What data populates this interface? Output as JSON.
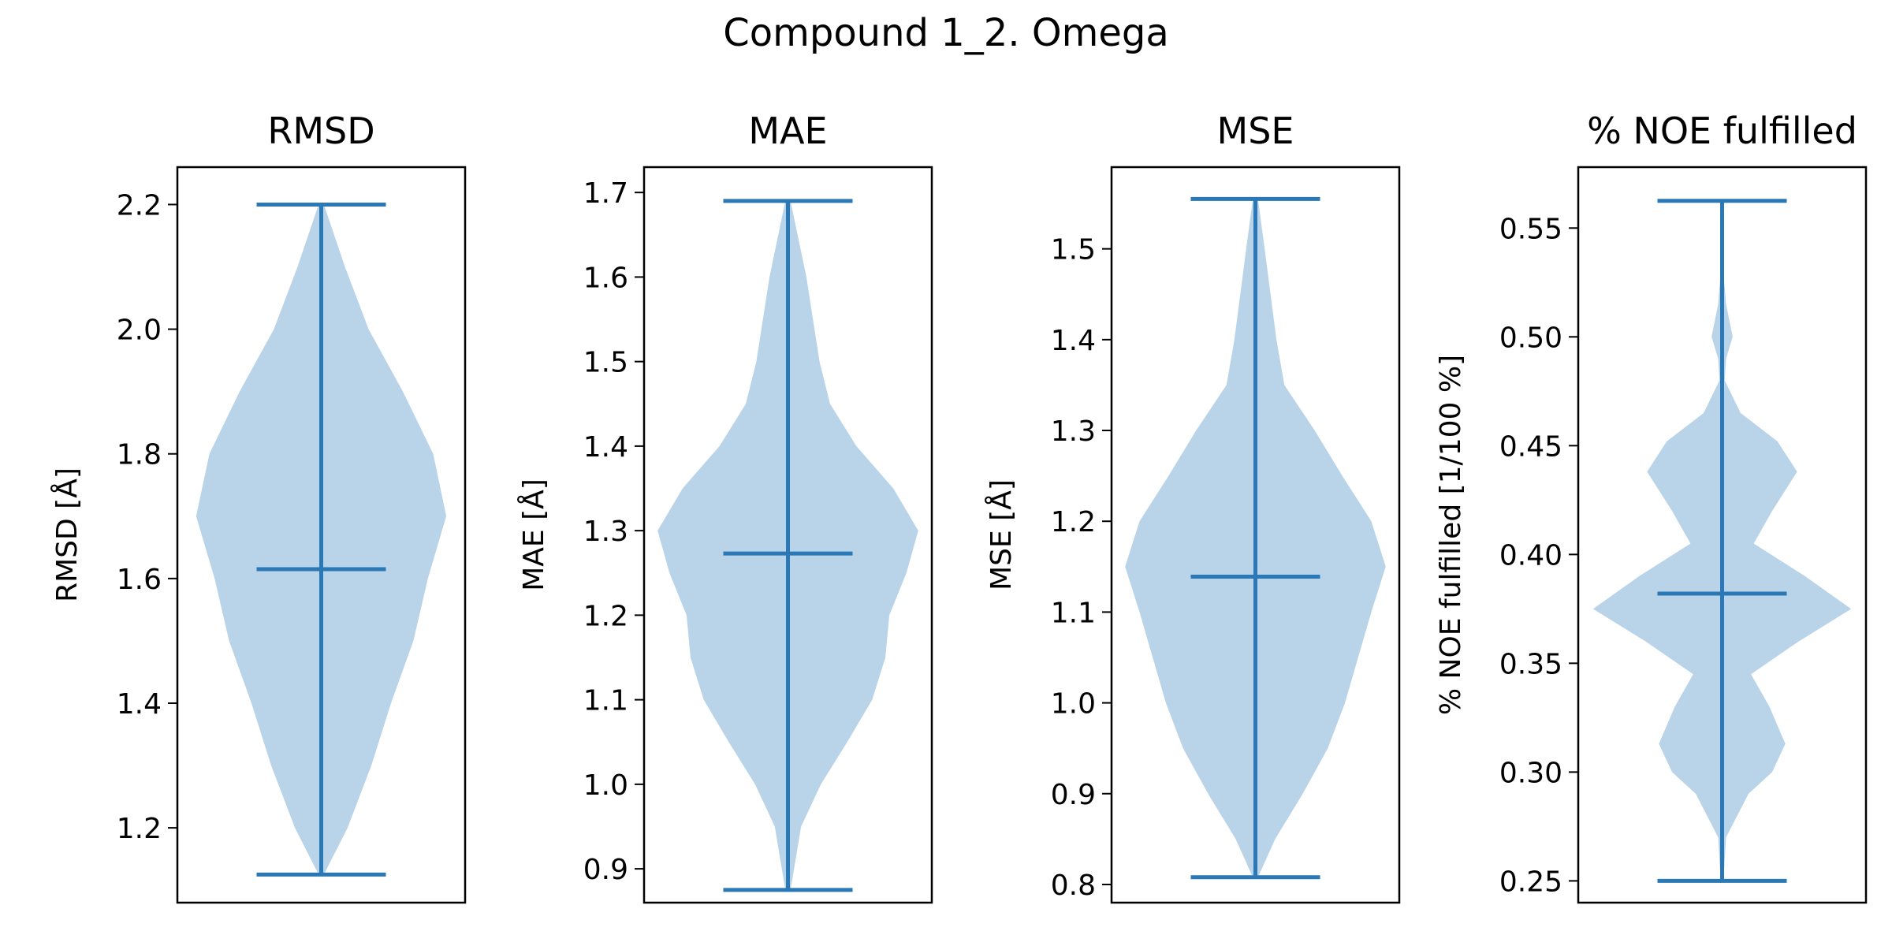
{
  "figure": {
    "title": "Compound 1_2. Omega"
  },
  "style": {
    "body_color": "#b9d4e8",
    "line_color": "#2a78b5"
  },
  "chart_data": [
    {
      "type": "violin",
      "title": "RMSD",
      "ylabel": "RMSD [Å]",
      "ylim": [
        1.08,
        2.26
      ],
      "yticks": [
        "1.2",
        "1.4",
        "1.6",
        "1.8",
        "2.0",
        "2.2"
      ],
      "ytick_values": [
        1.2,
        1.4,
        1.6,
        1.8,
        2.0,
        2.2
      ],
      "min": 1.125,
      "max": 2.2,
      "mean": 1.615,
      "density": [
        [
          1.125,
          0.02
        ],
        [
          1.2,
          0.2
        ],
        [
          1.3,
          0.38
        ],
        [
          1.4,
          0.53
        ],
        [
          1.5,
          0.7
        ],
        [
          1.6,
          0.81
        ],
        [
          1.7,
          0.95
        ],
        [
          1.8,
          0.85
        ],
        [
          1.9,
          0.62
        ],
        [
          2.0,
          0.36
        ],
        [
          2.1,
          0.18
        ],
        [
          2.2,
          0.02
        ]
      ]
    },
    {
      "type": "violin",
      "title": "MAE",
      "ylabel": "MAE [Å]",
      "ylim": [
        0.86,
        1.73
      ],
      "yticks": [
        "0.9",
        "1.0",
        "1.1",
        "1.2",
        "1.3",
        "1.4",
        "1.5",
        "1.6",
        "1.7"
      ],
      "ytick_values": [
        0.9,
        1.0,
        1.1,
        1.2,
        1.3,
        1.4,
        1.5,
        1.6,
        1.7
      ],
      "min": 0.875,
      "max": 1.69,
      "mean": 1.273,
      "density": [
        [
          0.875,
          0.02
        ],
        [
          0.95,
          0.1
        ],
        [
          1.0,
          0.25
        ],
        [
          1.05,
          0.45
        ],
        [
          1.1,
          0.64
        ],
        [
          1.15,
          0.74
        ],
        [
          1.2,
          0.77
        ],
        [
          1.25,
          0.9
        ],
        [
          1.3,
          0.99
        ],
        [
          1.35,
          0.8
        ],
        [
          1.4,
          0.52
        ],
        [
          1.45,
          0.32
        ],
        [
          1.5,
          0.24
        ],
        [
          1.6,
          0.14
        ],
        [
          1.69,
          0.02
        ]
      ]
    },
    {
      "type": "violin",
      "title": "MSE",
      "ylabel": "MSE [Å]",
      "ylim": [
        0.78,
        1.59
      ],
      "yticks": [
        "0.8",
        "0.9",
        "1.0",
        "1.1",
        "1.2",
        "1.3",
        "1.4",
        "1.5"
      ],
      "ytick_values": [
        0.8,
        0.9,
        1.0,
        1.1,
        1.2,
        1.3,
        1.4,
        1.5
      ],
      "min": 0.808,
      "max": 1.555,
      "mean": 1.139,
      "density": [
        [
          0.808,
          0.02
        ],
        [
          0.85,
          0.15
        ],
        [
          0.9,
          0.36
        ],
        [
          0.95,
          0.55
        ],
        [
          1.0,
          0.68
        ],
        [
          1.05,
          0.78
        ],
        [
          1.1,
          0.88
        ],
        [
          1.15,
          0.99
        ],
        [
          1.2,
          0.88
        ],
        [
          1.25,
          0.66
        ],
        [
          1.3,
          0.45
        ],
        [
          1.35,
          0.22
        ],
        [
          1.4,
          0.16
        ],
        [
          1.5,
          0.07
        ],
        [
          1.555,
          0.02
        ]
      ]
    },
    {
      "type": "violin",
      "title": "% NOE fulfilled",
      "ylabel": "% NOE fulfilled [1/100 %]",
      "ylim": [
        0.24,
        0.578
      ],
      "yticks": [
        "0.25",
        "0.30",
        "0.35",
        "0.40",
        "0.45",
        "0.50",
        "0.55"
      ],
      "ytick_values": [
        0.25,
        0.3,
        0.35,
        0.4,
        0.45,
        0.5,
        0.55
      ],
      "min": 0.25,
      "max": 0.5625,
      "mean": 0.382,
      "density": [
        [
          0.25,
          0.01
        ],
        [
          0.27,
          0.03
        ],
        [
          0.29,
          0.2
        ],
        [
          0.3,
          0.38
        ],
        [
          0.313,
          0.48
        ],
        [
          0.33,
          0.36
        ],
        [
          0.345,
          0.22
        ],
        [
          0.36,
          0.58
        ],
        [
          0.375,
          0.98
        ],
        [
          0.39,
          0.63
        ],
        [
          0.405,
          0.24
        ],
        [
          0.42,
          0.38
        ],
        [
          0.438,
          0.57
        ],
        [
          0.452,
          0.42
        ],
        [
          0.465,
          0.14
        ],
        [
          0.48,
          0.02
        ],
        [
          0.49,
          0.03
        ],
        [
          0.5,
          0.08
        ],
        [
          0.515,
          0.03
        ],
        [
          0.53,
          0.01
        ],
        [
          0.5625,
          0.005
        ]
      ]
    }
  ]
}
